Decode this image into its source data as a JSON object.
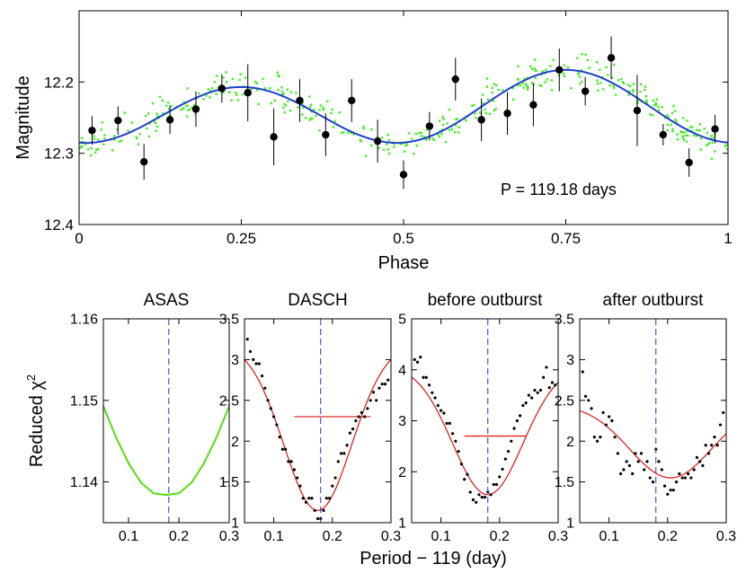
{
  "chart_data": [
    {
      "type": "scatter",
      "name": "phase-folded light curve",
      "xlabel": "Phase",
      "ylabel": "Magnitude",
      "xlim": [
        0,
        1
      ],
      "ylim": [
        12.4,
        12.1
      ],
      "y_reversed": true,
      "xticks": [
        "0",
        "0.25",
        "0.5",
        "0.75",
        "1"
      ],
      "yticks": [
        "12.2",
        "12.3",
        "12.4"
      ],
      "annotation": "P = 119.18 days",
      "fit": {
        "type": "sinusoid",
        "mean": 12.24,
        "amplitude": 0.045,
        "harmonic_amplitude": 0.012,
        "phase_of_max_light": 0.25,
        "color": "#1f3fd0"
      },
      "scatter_color": "#44ee22",
      "scatter_points": 420,
      "binned": {
        "color": "#000000",
        "x": [
          0.02,
          0.06,
          0.1,
          0.14,
          0.18,
          0.22,
          0.26,
          0.3,
          0.34,
          0.38,
          0.42,
          0.46,
          0.5,
          0.54,
          0.58,
          0.62,
          0.66,
          0.7,
          0.74,
          0.78,
          0.82,
          0.86,
          0.9,
          0.94,
          0.98
        ],
        "y": [
          12.268,
          12.254,
          12.312,
          12.253,
          12.238,
          12.209,
          12.215,
          12.277,
          12.226,
          12.274,
          12.226,
          12.283,
          12.33,
          12.262,
          12.196,
          12.253,
          12.244,
          12.232,
          12.183,
          12.213,
          12.166,
          12.24,
          12.274,
          12.313,
          12.266
        ],
        "err": [
          0.02,
          0.02,
          0.025,
          0.02,
          0.025,
          0.02,
          0.04,
          0.04,
          0.03,
          0.03,
          0.03,
          0.03,
          0.02,
          0.02,
          0.03,
          0.03,
          0.03,
          0.03,
          0.03,
          0.02,
          0.03,
          0.05,
          0.015,
          0.02,
          0.02
        ]
      }
    },
    {
      "type": "line",
      "title": "ASAS",
      "ylabel": "Reduced χ²",
      "xlim": [
        0.05,
        0.3
      ],
      "ylim": [
        1.135,
        1.16
      ],
      "xticks": [
        "0.1",
        "0.2",
        "0.3"
      ],
      "yticks": [
        "1.14",
        "1.15",
        "1.16"
      ],
      "marker_x": 0.18,
      "series": [
        {
          "name": "chi2 curve",
          "color": "#55dd11",
          "x": [
            0.05,
            0.075,
            0.1,
            0.125,
            0.15,
            0.175,
            0.2,
            0.225,
            0.25,
            0.275,
            0.3
          ],
          "values": [
            1.1493,
            1.1455,
            1.1423,
            1.1399,
            1.1386,
            1.1384,
            1.1386,
            1.1399,
            1.1423,
            1.1455,
            1.1493
          ]
        }
      ]
    },
    {
      "type": "scatter",
      "title": "DASCH",
      "xlim": [
        0.05,
        0.3
      ],
      "ylim": [
        1,
        3.5
      ],
      "xticks": [
        "0.1",
        "0.2",
        "0.3"
      ],
      "yticks": [
        "1",
        "1.5",
        "2",
        "2.5",
        "3",
        "3.5"
      ],
      "marker_x": 0.18,
      "fit": {
        "center": 0.175,
        "min": 1.15,
        "max": 3.2,
        "width": 0.058,
        "color": "#dd1111"
      },
      "level_line": {
        "y": 2.3,
        "x": [
          0.135,
          0.265
        ]
      },
      "points": {
        "x": [
          0.055,
          0.06,
          0.065,
          0.07,
          0.075,
          0.08,
          0.085,
          0.09,
          0.095,
          0.1,
          0.105,
          0.11,
          0.115,
          0.12,
          0.125,
          0.13,
          0.135,
          0.14,
          0.145,
          0.15,
          0.155,
          0.16,
          0.165,
          0.17,
          0.175,
          0.18,
          0.185,
          0.19,
          0.195,
          0.2,
          0.205,
          0.21,
          0.215,
          0.22,
          0.225,
          0.23,
          0.235,
          0.24,
          0.245,
          0.25,
          0.255,
          0.26,
          0.265,
          0.27,
          0.275,
          0.28,
          0.285,
          0.29,
          0.295
        ],
        "y": [
          3.25,
          3.1,
          3.0,
          2.95,
          2.95,
          2.8,
          2.65,
          2.5,
          2.4,
          2.3,
          2.2,
          2.05,
          1.9,
          1.9,
          1.75,
          1.75,
          1.65,
          1.55,
          1.45,
          1.3,
          1.25,
          1.3,
          1.3,
          1.15,
          1.05,
          1.05,
          1.15,
          1.3,
          1.3,
          1.45,
          1.55,
          1.75,
          1.85,
          1.85,
          1.95,
          2.1,
          2.15,
          2.25,
          2.3,
          2.35,
          2.3,
          2.4,
          2.5,
          2.6,
          2.5,
          2.65,
          2.7,
          2.7,
          2.75
        ]
      }
    },
    {
      "type": "scatter",
      "title": "before outburst",
      "xlim": [
        0.05,
        0.3
      ],
      "ylim": [
        1,
        5
      ],
      "xticks": [
        "0.1",
        "0.2",
        "0.3"
      ],
      "yticks": [
        "1",
        "2",
        "3",
        "4",
        "5"
      ],
      "marker_x": 0.18,
      "fit": {
        "center": 0.18,
        "min": 1.55,
        "max": 4.1,
        "width": 0.06,
        "color": "#dd1111"
      },
      "level_line": {
        "y": 2.7,
        "x": [
          0.14,
          0.245
        ]
      },
      "points": {
        "x": [
          0.055,
          0.06,
          0.065,
          0.07,
          0.075,
          0.08,
          0.085,
          0.09,
          0.095,
          0.1,
          0.105,
          0.11,
          0.115,
          0.12,
          0.125,
          0.13,
          0.135,
          0.14,
          0.145,
          0.15,
          0.155,
          0.16,
          0.165,
          0.17,
          0.175,
          0.18,
          0.185,
          0.19,
          0.195,
          0.2,
          0.205,
          0.21,
          0.215,
          0.22,
          0.225,
          0.23,
          0.235,
          0.24,
          0.245,
          0.25,
          0.255,
          0.26,
          0.265,
          0.27,
          0.275,
          0.28,
          0.285,
          0.29,
          0.295
        ],
        "y": [
          4.2,
          4.15,
          4.25,
          3.85,
          3.85,
          3.7,
          3.55,
          3.45,
          3.3,
          3.2,
          3.15,
          2.95,
          2.95,
          2.75,
          2.6,
          2.4,
          2.15,
          1.85,
          1.95,
          1.6,
          1.45,
          1.4,
          1.55,
          1.5,
          1.5,
          1.6,
          1.55,
          1.75,
          1.75,
          1.9,
          2.05,
          2.25,
          2.4,
          2.6,
          2.85,
          3.0,
          3.1,
          3.3,
          3.35,
          3.5,
          3.45,
          3.6,
          3.55,
          3.6,
          3.85,
          4.05,
          3.65,
          3.75,
          3.7
        ]
      }
    },
    {
      "type": "scatter",
      "title": "after outburst",
      "xlim": [
        0.05,
        0.3
      ],
      "ylim": [
        1,
        3.5
      ],
      "xticks": [
        "0.1",
        "0.2",
        "0.3"
      ],
      "yticks": [
        "1",
        "1.5",
        "2",
        "2.5",
        "3",
        "3.5"
      ],
      "marker_x": 0.18,
      "fit": {
        "center": 0.205,
        "min": 1.55,
        "max": 2.45,
        "width": 0.07,
        "color": "#dd1111"
      },
      "points": {
        "x": [
          0.055,
          0.06,
          0.065,
          0.07,
          0.075,
          0.08,
          0.085,
          0.09,
          0.095,
          0.1,
          0.105,
          0.11,
          0.115,
          0.12,
          0.125,
          0.13,
          0.135,
          0.14,
          0.145,
          0.15,
          0.155,
          0.16,
          0.165,
          0.17,
          0.175,
          0.18,
          0.185,
          0.19,
          0.195,
          0.2,
          0.205,
          0.21,
          0.215,
          0.22,
          0.225,
          0.23,
          0.235,
          0.24,
          0.245,
          0.25,
          0.255,
          0.26,
          0.265,
          0.27,
          0.275,
          0.28,
          0.285,
          0.29,
          0.295
        ],
        "y": [
          2.85,
          2.55,
          2.5,
          2.4,
          2.05,
          2.0,
          2.05,
          2.35,
          2.2,
          2.3,
          2.25,
          2.05,
          1.85,
          1.6,
          1.65,
          1.75,
          1.7,
          1.6,
          1.85,
          1.75,
          1.85,
          1.65,
          1.75,
          1.55,
          1.5,
          1.9,
          1.75,
          1.65,
          1.45,
          1.35,
          1.4,
          1.4,
          1.5,
          1.6,
          1.55,
          1.55,
          1.6,
          1.55,
          1.65,
          1.8,
          1.75,
          1.7,
          1.95,
          1.85,
          1.95,
          2.05,
          1.95,
          2.2,
          2.35
        ]
      }
    }
  ],
  "shared_xlabel": "Period − 119 (day)"
}
